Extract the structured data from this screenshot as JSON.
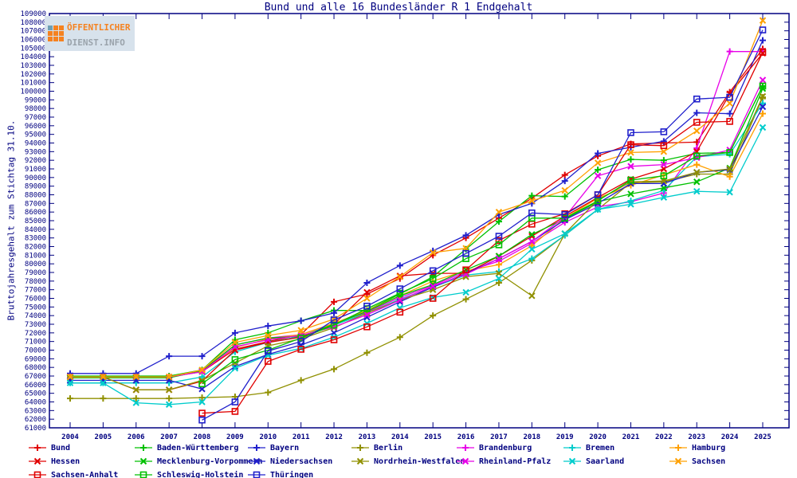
{
  "title": "Bund und alle 16 Bundesländer R 1 Endgehalt",
  "y_axis_label": "Bruttojahresgehalt zum Stichtag 31.10.",
  "logo": {
    "line1": "ÖFFENTLICHER",
    "line2": "DIENST.INFO",
    "accent_color": "#f58220",
    "gray_color": "#9aa3ab"
  },
  "axis_color": "#000080",
  "chart_data": {
    "type": "line",
    "x": [
      2004,
      2005,
      2006,
      2007,
      2008,
      2009,
      2010,
      2011,
      2012,
      2013,
      2014,
      2015,
      2016,
      2017,
      2018,
      2019,
      2020,
      2021,
      2022,
      2023,
      2024,
      2025
    ],
    "xlabel": "",
    "ylabel": "Bruttojahresgehalt zum Stichtag 31.10.",
    "ylim": [
      61000,
      109000
    ],
    "ytick_step": 1000,
    "grid": false,
    "legend_position": "bottom",
    "series": [
      {
        "name": "Bund",
        "color": "#e00000",
        "marker": "plus",
        "legend_col": 0,
        "legend_row": 0,
        "values": [
          66900,
          66900,
          66900,
          66900,
          67500,
          70100,
          71000,
          71800,
          75600,
          76500,
          78300,
          81000,
          83000,
          85300,
          87600,
          90300,
          92500,
          93900,
          94000,
          94100,
          99900,
          104900
        ]
      },
      {
        "name": "Baden-Württemberg",
        "color": "#00c000",
        "marker": "plus",
        "legend_col": 1,
        "legend_row": 0,
        "values": [
          67000,
          67000,
          67000,
          67000,
          67700,
          71200,
          72000,
          73400,
          74600,
          74600,
          76500,
          78500,
          81700,
          84900,
          87900,
          87800,
          90900,
          92100,
          92000,
          92800,
          92900,
          100600
        ]
      },
      {
        "name": "Bayern",
        "color": "#2020cc",
        "marker": "plus",
        "legend_col": 2,
        "legend_row": 0,
        "values": [
          67300,
          67300,
          67300,
          69300,
          69300,
          72000,
          72800,
          73400,
          74300,
          77800,
          79800,
          81500,
          83300,
          85700,
          87000,
          89600,
          92800,
          93500,
          94200,
          97500,
          97400,
          105900
        ]
      },
      {
        "name": "Berlin",
        "color": "#909000",
        "marker": "plus",
        "legend_col": 3,
        "legend_row": 0,
        "values": [
          64400,
          64400,
          64400,
          64400,
          64500,
          64600,
          65100,
          66500,
          67800,
          69700,
          71500,
          74000,
          75900,
          77800,
          80400,
          83300,
          86300,
          89400,
          89500,
          90400,
          90400,
          99300
        ]
      },
      {
        "name": "Brandenburg",
        "color": "#e800e8",
        "marker": "plus",
        "legend_col": 4,
        "legend_row": 0,
        "values": [
          66900,
          66900,
          66900,
          66900,
          67600,
          70600,
          71400,
          71800,
          73100,
          74400,
          76100,
          77500,
          79100,
          80300,
          82400,
          84800,
          86600,
          87200,
          88200,
          93400,
          104600,
          104600
        ]
      },
      {
        "name": "Bremen",
        "color": "#00cccc",
        "marker": "plus",
        "legend_col": 5,
        "legend_row": 0,
        "values": [
          66200,
          66200,
          66200,
          66200,
          66900,
          69800,
          70900,
          71600,
          72900,
          74300,
          75900,
          77300,
          78700,
          79100,
          80600,
          83300,
          86300,
          87300,
          88500,
          92400,
          92700,
          98600
        ]
      },
      {
        "name": "Hamburg",
        "color": "#ffa000",
        "marker": "plus",
        "legend_col": 6,
        "legend_row": 0,
        "values": [
          66900,
          66900,
          66900,
          66900,
          67600,
          70300,
          71300,
          71800,
          73100,
          74600,
          76300,
          78000,
          79200,
          79900,
          82100,
          85300,
          87600,
          89100,
          90300,
          91500,
          90100,
          97400
        ]
      },
      {
        "name": "Hessen",
        "color": "#e00000",
        "marker": "times",
        "legend_col": 0,
        "legend_row": 1,
        "values": [
          66900,
          66900,
          65400,
          65400,
          66400,
          70000,
          70900,
          71500,
          73000,
          76700,
          78600,
          78900,
          78900,
          80900,
          83200,
          85500,
          87700,
          89800,
          91000,
          93000,
          99700,
          104400
        ]
      },
      {
        "name": "Mecklenburg-Vorpommern",
        "color": "#00c000",
        "marker": "times",
        "legend_col": 1,
        "legend_row": 1,
        "values": [
          66800,
          66800,
          66800,
          66800,
          67600,
          70600,
          71400,
          71600,
          73000,
          74500,
          76300,
          77600,
          79300,
          80900,
          83400,
          85200,
          87200,
          88100,
          88800,
          89500,
          91100,
          100300
        ]
      },
      {
        "name": "Niedersachsen",
        "color": "#2020cc",
        "marker": "times",
        "legend_col": 2,
        "legend_row": 1,
        "values": [
          66500,
          66500,
          66500,
          66500,
          65500,
          68100,
          69500,
          70600,
          72000,
          73800,
          75600,
          77300,
          78900,
          80600,
          82600,
          85100,
          87000,
          89300,
          89300,
          90600,
          90900,
          98200
        ]
      },
      {
        "name": "Nordrhein-Westfalen",
        "color": "#909000",
        "marker": "times",
        "legend_col": 3,
        "legend_row": 1,
        "values": [
          66900,
          66900,
          65400,
          65400,
          66500,
          68500,
          70500,
          71300,
          72600,
          74300,
          75800,
          77000,
          78500,
          78900,
          76300,
          83500,
          87400,
          89500,
          89600,
          90600,
          91000,
          99400
        ]
      },
      {
        "name": "Rheinland-Pfalz",
        "color": "#e800e8",
        "marker": "times",
        "legend_col": 4,
        "legend_row": 1,
        "values": [
          66900,
          66900,
          66900,
          66900,
          67500,
          70400,
          71200,
          71700,
          72700,
          74100,
          75800,
          77400,
          78800,
          80600,
          82600,
          85400,
          90200,
          91300,
          91500,
          92300,
          93200,
          101300
        ]
      },
      {
        "name": "Saarland",
        "color": "#00cccc",
        "marker": "times",
        "legend_col": 5,
        "legend_row": 1,
        "values": [
          66200,
          66200,
          63900,
          63700,
          64000,
          67900,
          69400,
          70200,
          71500,
          73100,
          74900,
          76100,
          76700,
          78300,
          81700,
          83500,
          86300,
          86900,
          87700,
          88400,
          88300,
          95800
        ]
      },
      {
        "name": "Sachsen",
        "color": "#ffa000",
        "marker": "times",
        "legend_col": 6,
        "legend_row": 1,
        "values": [
          66900,
          66900,
          66900,
          66900,
          67700,
          70900,
          71700,
          72300,
          73600,
          76000,
          78500,
          81300,
          81800,
          86000,
          87300,
          88500,
          91700,
          92900,
          93000,
          95400,
          98600,
          108200
        ]
      },
      {
        "name": "Sachsen-Anhalt",
        "color": "#e00000",
        "marker": "square",
        "legend_col": 0,
        "legend_row": 2,
        "values": [
          null,
          null,
          null,
          null,
          62700,
          62900,
          68700,
          70100,
          71200,
          72700,
          74400,
          76000,
          79300,
          82700,
          84600,
          85800,
          88000,
          93800,
          93700,
          96400,
          96500,
          104500
        ]
      },
      {
        "name": "Schleswig-Holstein",
        "color": "#00c000",
        "marker": "square",
        "legend_col": 1,
        "legend_row": 2,
        "values": [
          null,
          null,
          null,
          null,
          66100,
          68900,
          70000,
          71400,
          72900,
          74800,
          76600,
          78300,
          80600,
          82200,
          85300,
          85300,
          87300,
          89700,
          90200,
          92500,
          92900,
          100600
        ]
      },
      {
        "name": "Thüringen",
        "color": "#2020cc",
        "marker": "square",
        "legend_col": 2,
        "legend_row": 2,
        "values": [
          null,
          null,
          null,
          null,
          61900,
          64000,
          69900,
          71000,
          73500,
          75100,
          77100,
          79200,
          81200,
          83200,
          85900,
          85700,
          88000,
          95200,
          95300,
          99100,
          99300,
          107100
        ]
      }
    ]
  }
}
